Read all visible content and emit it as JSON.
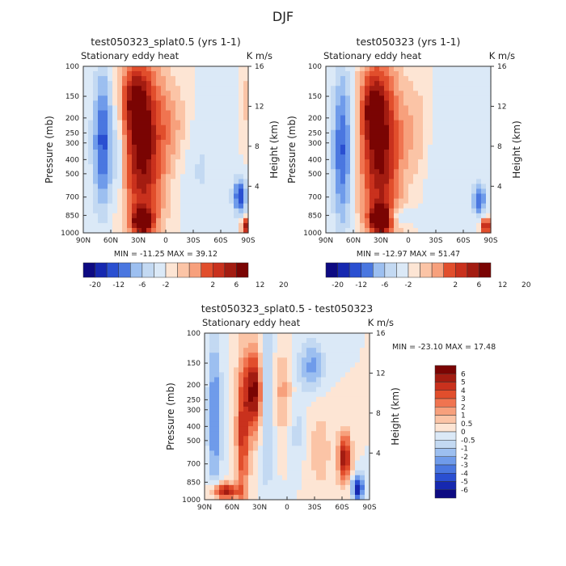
{
  "chart_data": {
    "type": "heatmap",
    "title": "DJF",
    "x_ticks": [
      "90N",
      "60N",
      "30N",
      "0",
      "30S",
      "60S",
      "90S"
    ],
    "y_ticks": [
      "1000",
      "850",
      "700",
      "500",
      "400",
      "300",
      "250",
      "200",
      "150",
      "100"
    ],
    "y_right_ticks": [
      "4",
      "8",
      "12",
      "16"
    ],
    "y_axis_label": "Pressure (mb)",
    "y_right_label": "Height (km)",
    "panels": [
      {
        "title": "test050323_splat0.5 (yrs 1-1)",
        "left_label": "Stationary eddy heat",
        "right_label": "K m/s",
        "min_max_text": "MIN = -11.25   MAX =  39.12",
        "colorbar_labels": [
          "-20",
          "-12",
          "-6",
          "-2",
          "2",
          "6",
          "12",
          "20"
        ],
        "colorbar_levels": 14
      },
      {
        "title": "test050323 (yrs 1-1)",
        "left_label": "Stationary eddy heat",
        "right_label": "K m/s",
        "min_max_text": "MIN = -12.97   MAX =  51.47",
        "colorbar_labels": [
          "-20",
          "-12",
          "-6",
          "-2",
          "2",
          "6",
          "12",
          "20"
        ],
        "colorbar_levels": 14
      },
      {
        "title": "test050323_splat0.5 - test050323",
        "left_label": "Stationary eddy heat",
        "right_label": "K m/s",
        "min_max_text": "MIN = -23.10   MAX =  17.48",
        "colorbar_labels": [
          "6",
          "5",
          "4",
          "3",
          "2",
          "1",
          "0.5",
          "0",
          "-0.5",
          "-1",
          "-2",
          "-3",
          "-4",
          "-5",
          "-6"
        ],
        "colorbar_levels": 16
      }
    ]
  },
  "colors": {
    "scale_red_to_blue": [
      "#7a0403",
      "#a31c11",
      "#c9311d",
      "#e14e2c",
      "#f07450",
      "#f7a07c",
      "#fbc4a6",
      "#fde5d4",
      "#dbe9f7",
      "#c3d9f2",
      "#9cbff0",
      "#6f9bea",
      "#4a77e0",
      "#2a4fd1",
      "#1628b0",
      "#0d0a82"
    ]
  }
}
